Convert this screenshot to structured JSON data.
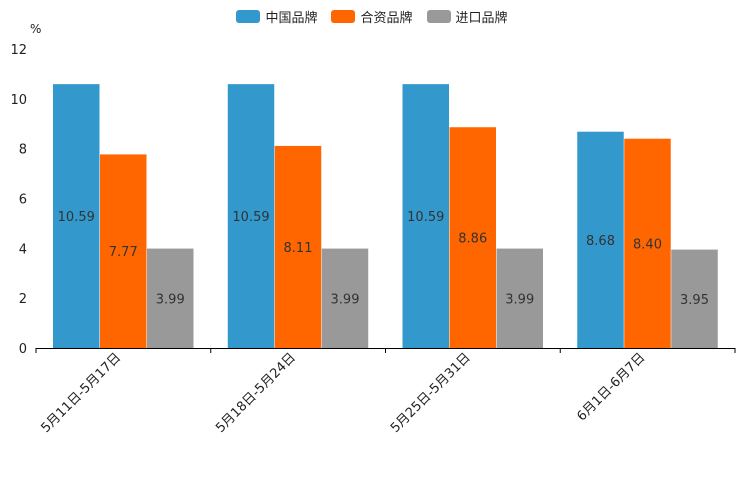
{
  "chart_data": {
    "type": "bar",
    "unit_label": "%",
    "categories": [
      "5月11日-5月17日",
      "5月18日-5月24日",
      "5月25日-5月31日",
      "6月1日-6月7日"
    ],
    "series": [
      {
        "name": "中国品牌",
        "color": "#3398cc",
        "values": [
          10.59,
          10.59,
          10.59,
          8.68
        ],
        "labels": [
          "10.59",
          "10.59",
          "10.59",
          "8.68"
        ]
      },
      {
        "name": "合资品牌",
        "color": "#ff6600",
        "values": [
          7.77,
          8.11,
          8.86,
          8.4
        ],
        "labels": [
          "7.77",
          "8.11",
          "8.86",
          "8.40"
        ]
      },
      {
        "name": "进口品牌",
        "color": "#999999",
        "values": [
          3.99,
          3.99,
          3.99,
          3.95
        ],
        "labels": [
          "3.99",
          "3.99",
          "3.99",
          "3.95"
        ]
      }
    ],
    "y_ticks": [
      "0",
      "2",
      "4",
      "6",
      "8",
      "10",
      "12"
    ],
    "ylim": [
      0,
      12
    ],
    "legend_position": "top-center"
  }
}
